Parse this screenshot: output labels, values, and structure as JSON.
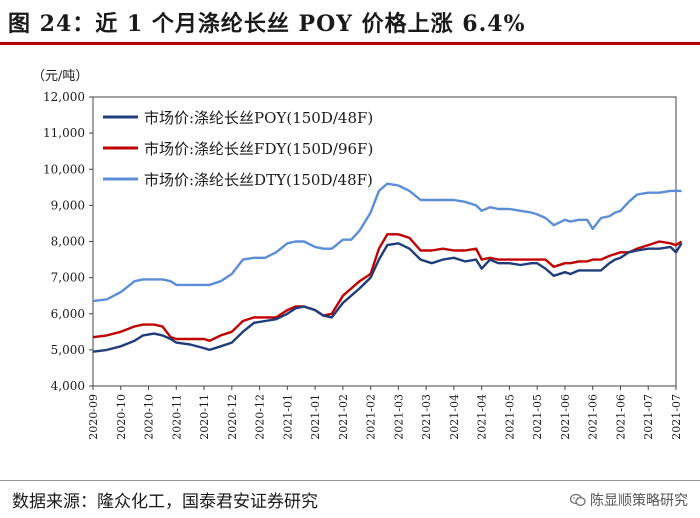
{
  "header": {
    "title": "图 24：近 1 个月涤纶长丝 POY 价格上涨 6.4%"
  },
  "footer": {
    "source": "数据来源：隆众化工，国泰君安证券研究",
    "watermark": "陈显顺策略研究",
    "watermark_icon": "wechat-icon"
  },
  "colors": {
    "poy": "#1f3d7a",
    "fdy": "#c00000",
    "dty": "#5b8ed6",
    "title_rule": "#b30000"
  },
  "chart_data": {
    "type": "line",
    "unit_label": "（元/吨）",
    "ylim": [
      4000,
      12000
    ],
    "yticks": [
      4000,
      5000,
      6000,
      7000,
      8000,
      9000,
      10000,
      11000,
      12000
    ],
    "ytick_labels": [
      "4,000",
      "5,000",
      "6,000",
      "7,000",
      "8,000",
      "9,000",
      "10,000",
      "11,000",
      "12,000"
    ],
    "xtick_labels": [
      "2020-09",
      "2020-10",
      "2020-10",
      "2020-11",
      "2020-11",
      "2020-12",
      "2020-12",
      "2021-01",
      "2021-01",
      "2021-02",
      "2021-02",
      "2021-03",
      "2021-03",
      "2021-04",
      "2021-04",
      "2021-05",
      "2021-05",
      "2021-06",
      "2021-06",
      "2021-06",
      "2021-07",
      "2021-07"
    ],
    "legend_position": "top-left",
    "series": [
      {
        "name": "市场价:涤纶长丝POY(150D/48F)",
        "key": "poy",
        "x": [
          0,
          0.5,
          1,
          1.5,
          1.8,
          2.2,
          2.5,
          2.8,
          3.0,
          3.5,
          4.0,
          4.2,
          4.6,
          5.0,
          5.4,
          5.8,
          6.2,
          6.6,
          7.0,
          7.3,
          7.6,
          8.0,
          8.3,
          8.6,
          9.0,
          9.3,
          9.6,
          10.0,
          10.3,
          10.6,
          11.0,
          11.4,
          11.8,
          12.2,
          12.6,
          13.0,
          13.4,
          13.8,
          14.0,
          14.3,
          14.6,
          15.0,
          15.4,
          15.8,
          16.0,
          16.3,
          16.6,
          17.0,
          17.2,
          17.5,
          17.8,
          18.0,
          18.3,
          18.6,
          18.8,
          19.0,
          19.3,
          19.6,
          20.0,
          20.4,
          20.8,
          21.0,
          21.2
        ],
        "values": [
          4950,
          5000,
          5100,
          5250,
          5400,
          5450,
          5400,
          5300,
          5200,
          5150,
          5050,
          5000,
          5100,
          5200,
          5500,
          5750,
          5800,
          5850,
          6000,
          6150,
          6200,
          6100,
          5950,
          5900,
          6300,
          6500,
          6700,
          7000,
          7500,
          7900,
          7950,
          7800,
          7500,
          7400,
          7500,
          7550,
          7450,
          7500,
          7250,
          7500,
          7400,
          7400,
          7350,
          7400,
          7400,
          7250,
          7050,
          7150,
          7100,
          7200,
          7200,
          7200,
          7200,
          7400,
          7500,
          7550,
          7700,
          7750,
          7800,
          7800,
          7850,
          7700,
          7950
        ]
      },
      {
        "name": "市场价:涤纶长丝FDY(150D/96F)",
        "key": "fdy",
        "x": [
          0,
          0.5,
          1,
          1.5,
          1.8,
          2.2,
          2.5,
          2.8,
          3.0,
          3.5,
          4.0,
          4.2,
          4.6,
          5.0,
          5.4,
          5.8,
          6.2,
          6.6,
          7.0,
          7.3,
          7.6,
          8.0,
          8.3,
          8.6,
          9.0,
          9.3,
          9.6,
          10.0,
          10.3,
          10.6,
          11.0,
          11.4,
          11.8,
          12.2,
          12.6,
          13.0,
          13.4,
          13.8,
          14.0,
          14.3,
          14.6,
          15.0,
          15.4,
          15.8,
          16.0,
          16.3,
          16.6,
          17.0,
          17.2,
          17.5,
          17.8,
          18.0,
          18.3,
          18.6,
          18.8,
          19.0,
          19.3,
          19.6,
          20.0,
          20.4,
          20.8,
          21.0,
          21.2
        ],
        "values": [
          5350,
          5400,
          5500,
          5650,
          5700,
          5700,
          5650,
          5350,
          5300,
          5300,
          5300,
          5250,
          5400,
          5500,
          5800,
          5900,
          5900,
          5900,
          6100,
          6200,
          6200,
          6100,
          5950,
          6000,
          6500,
          6700,
          6900,
          7100,
          7800,
          8200,
          8200,
          8100,
          7750,
          7750,
          7800,
          7750,
          7750,
          7800,
          7500,
          7550,
          7500,
          7500,
          7500,
          7500,
          7500,
          7500,
          7300,
          7400,
          7400,
          7450,
          7450,
          7500,
          7500,
          7600,
          7650,
          7700,
          7700,
          7800,
          7900,
          8000,
          7950,
          7900,
          8000
        ]
      },
      {
        "name": "市场价:涤纶长丝DTY(150D/48F)",
        "key": "dty",
        "x": [
          0,
          0.5,
          1,
          1.5,
          1.8,
          2.2,
          2.5,
          2.8,
          3.0,
          3.5,
          4.0,
          4.2,
          4.6,
          5.0,
          5.4,
          5.8,
          6.2,
          6.6,
          7.0,
          7.3,
          7.6,
          8.0,
          8.3,
          8.6,
          9.0,
          9.3,
          9.6,
          10.0,
          10.3,
          10.6,
          11.0,
          11.4,
          11.8,
          12.2,
          12.6,
          13.0,
          13.4,
          13.8,
          14.0,
          14.3,
          14.6,
          15.0,
          15.4,
          15.8,
          16.0,
          16.3,
          16.6,
          17.0,
          17.2,
          17.5,
          17.8,
          18.0,
          18.3,
          18.6,
          18.8,
          19.0,
          19.3,
          19.6,
          20.0,
          20.4,
          20.8,
          21.0,
          21.2
        ],
        "values": [
          6350,
          6400,
          6600,
          6900,
          6950,
          6950,
          6950,
          6900,
          6800,
          6800,
          6800,
          6800,
          6900,
          7100,
          7500,
          7550,
          7550,
          7700,
          7950,
          8000,
          8000,
          7850,
          7800,
          7800,
          8050,
          8050,
          8300,
          8800,
          9400,
          9600,
          9550,
          9400,
          9150,
          9150,
          9150,
          9150,
          9100,
          9000,
          8850,
          8950,
          8900,
          8900,
          8850,
          8800,
          8750,
          8650,
          8450,
          8600,
          8550,
          8600,
          8600,
          8350,
          8650,
          8700,
          8800,
          8850,
          9100,
          9300,
          9350,
          9350,
          9400,
          9400,
          9400
        ]
      }
    ]
  }
}
